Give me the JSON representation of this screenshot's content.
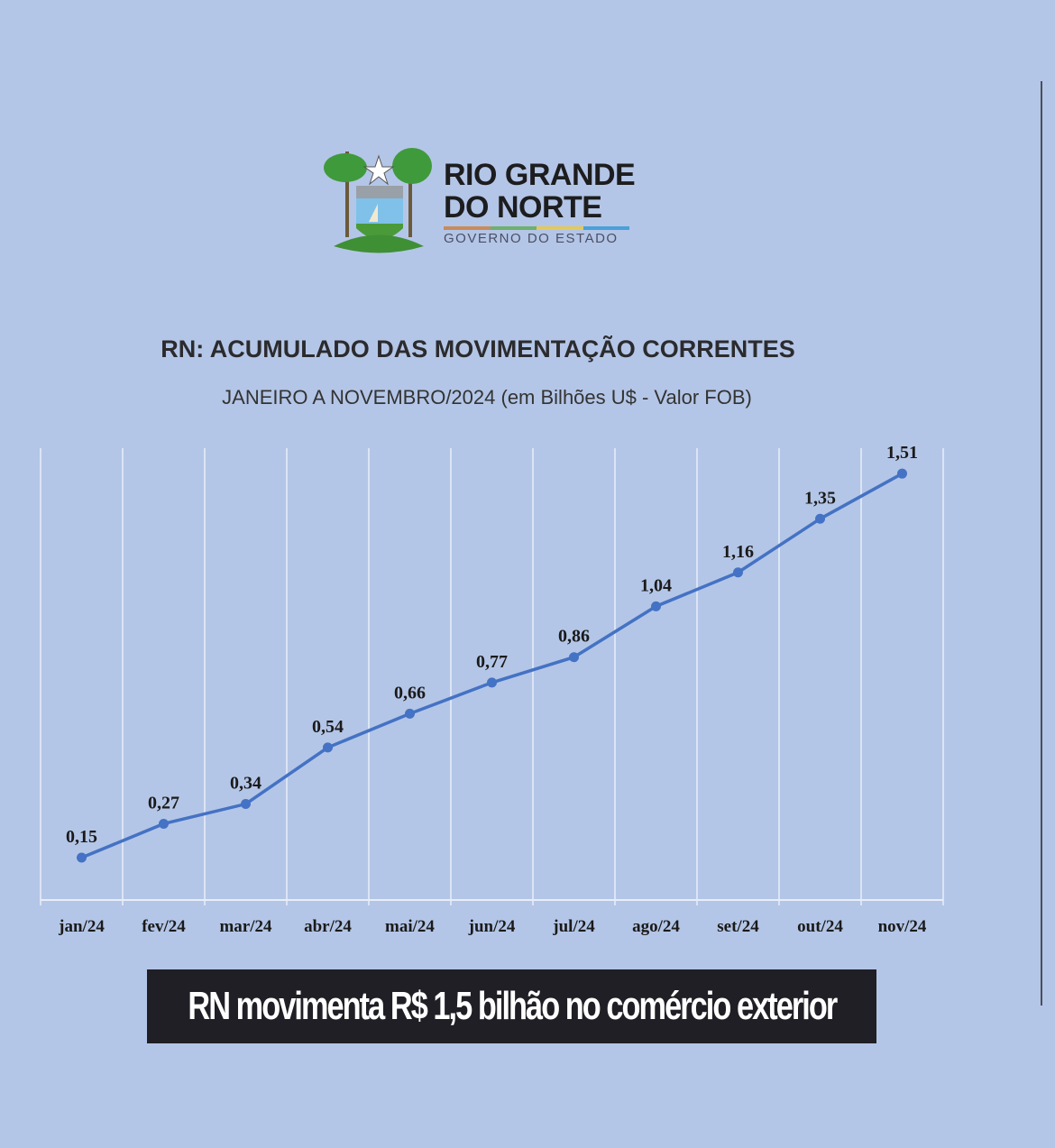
{
  "logo": {
    "line1": "RIO GRANDE",
    "line2": "DO NORTE",
    "line3": "GOVERNO DO ESTADO",
    "bar_colors": [
      "#c98b5a",
      "#6fb06b",
      "#e4c95a",
      "#4aa0d8"
    ]
  },
  "chart_data": {
    "type": "line",
    "title": "RN: ACUMULADO DAS MOVIMENTAÇÃO CORRENTES",
    "subtitle": "JANEIRO A NOVEMBRO/2024 (em Bilhões U$ - Valor FOB)",
    "categories": [
      "jan/24",
      "fev/24",
      "mar/24",
      "abr/24",
      "mai/24",
      "jun/24",
      "jul/24",
      "ago/24",
      "set/24",
      "out/24",
      "nov/24"
    ],
    "values": [
      0.15,
      0.27,
      0.34,
      0.54,
      0.66,
      0.77,
      0.86,
      1.04,
      1.16,
      1.35,
      1.51
    ],
    "data_labels": [
      "0,15",
      "0,27",
      "0,34",
      "0,54",
      "0,66",
      "0,77",
      "0,86",
      "1,04",
      "1,16",
      "1,35",
      "1,51"
    ],
    "ylim": [
      0,
      1.6
    ],
    "grid": "vertical",
    "line_color": "#4472c4"
  },
  "banner": {
    "text": "RN movimenta R$ 1,5 bilhão no comércio exterior"
  }
}
